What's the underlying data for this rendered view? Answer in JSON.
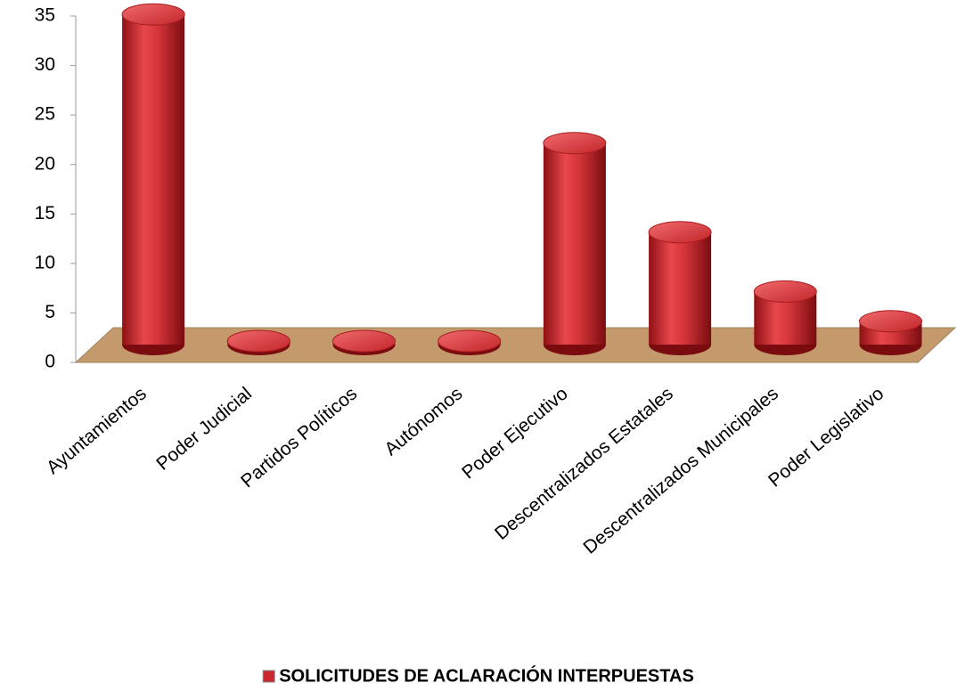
{
  "chart_data": {
    "type": "bar",
    "categories": [
      "Ayuntamientos",
      "Poder Judicial",
      "Partidos Políticos",
      "Autónomos",
      "Poder Ejecutivo",
      "Descentralizados Estatales",
      "Descentralizados Municipales",
      "Poder Legislativo"
    ],
    "series": [
      {
        "name": "SOLICITUDES DE ACLARACIÓN INTERPUESTAS",
        "color": "#c8282d",
        "values": [
          33,
          0,
          0,
          0,
          20,
          11,
          5,
          2
        ]
      }
    ],
    "ylim": [
      0,
      35
    ],
    "yticks": [
      0,
      5,
      10,
      15,
      20,
      25,
      30,
      35
    ]
  }
}
